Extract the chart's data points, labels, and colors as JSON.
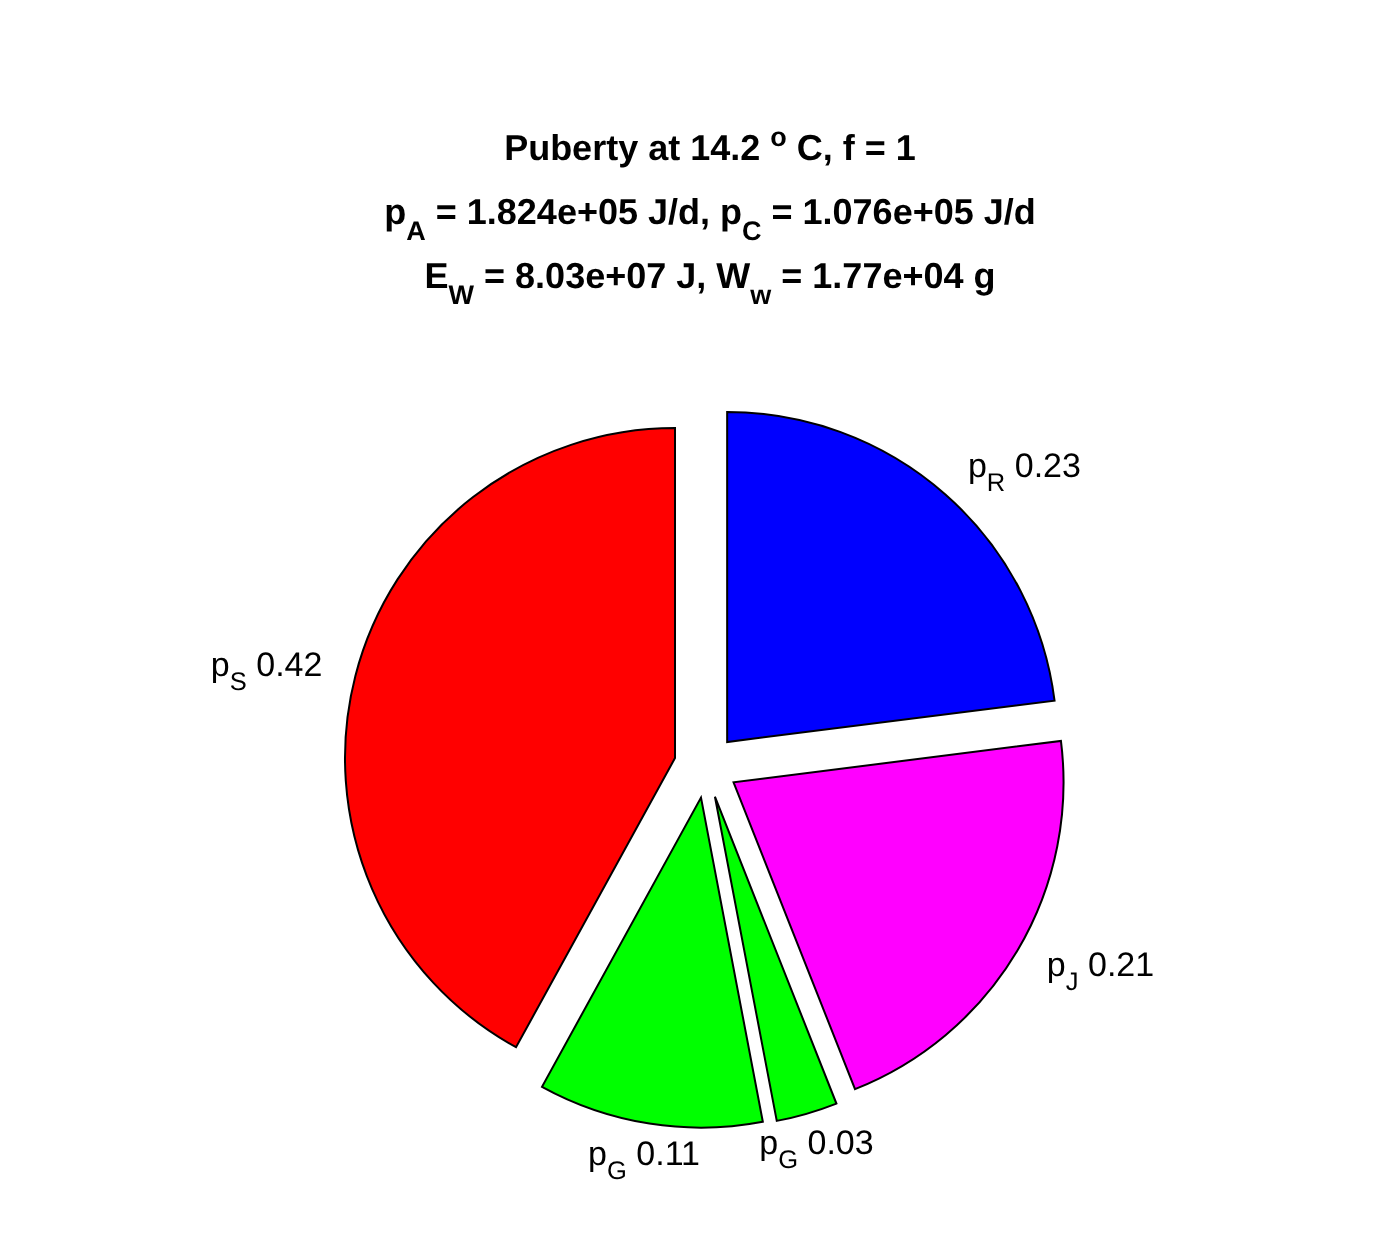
{
  "chart_data": {
    "type": "pie",
    "title": "Puberty at 14.2 $^{o}$C, f = 1\np$_{A}$ = 1.824e+05 J/d,  p$_{C}$ = 1.076e+05 J/d\nE$_{W}$ = 8.03e+07 J, W$_{w}$ = 1.77e+04 g",
    "categories": [
      "p$_{R}$",
      "p$_{J}$",
      "p$_{G}$",
      "p$_{G}$",
      "p$_{S}$"
    ],
    "values": [
      0.23,
      0.21,
      0.03,
      0.11,
      0.42
    ],
    "data_labels": true,
    "colors": [
      "#0000ff",
      "#ff00ff",
      "#00ff00",
      "#00ff00",
      "#ff0000"
    ]
  }
}
